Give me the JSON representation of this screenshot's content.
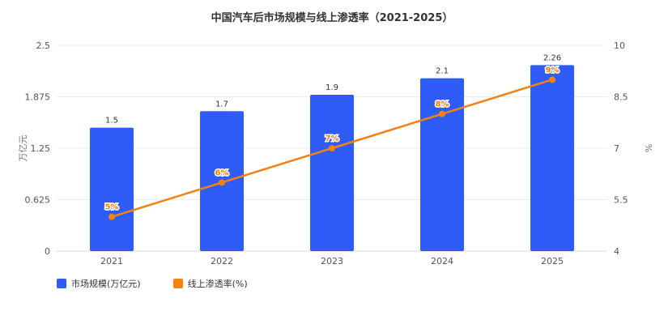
{
  "chart_data": {
    "type": "bar",
    "title": "中国汽车后市场规模与线上渗透率（2021-2025）",
    "categories": [
      "2021",
      "2022",
      "2023",
      "2024",
      "2025"
    ],
    "series": [
      {
        "name": "市场规模(万亿元)",
        "type": "bar",
        "axis": "left",
        "values": [
          1.5,
          1.7,
          1.9,
          2.1,
          2.26
        ],
        "labels": [
          "1.5",
          "1.7",
          "1.9",
          "2.1",
          "2.26"
        ],
        "color": "#2f5cf6"
      },
      {
        "name": "线上渗透率(%)",
        "type": "line",
        "axis": "right",
        "values": [
          5,
          6,
          7,
          8,
          9
        ],
        "labels": [
          "5%",
          "6%",
          "7%",
          "8%",
          "9%"
        ],
        "color": "#f5820f"
      }
    ],
    "y_left": {
      "label": "万亿元",
      "ylim": [
        0,
        2.5
      ],
      "ticks": [
        "0",
        "0.625",
        "1.25",
        "1.875",
        "2.5"
      ]
    },
    "y_right": {
      "label": "%",
      "ylim": [
        4,
        10
      ],
      "ticks": [
        "4",
        "5.5",
        "7",
        "8.5",
        "10"
      ]
    },
    "grid": true,
    "legend_position": "bottom-left"
  }
}
